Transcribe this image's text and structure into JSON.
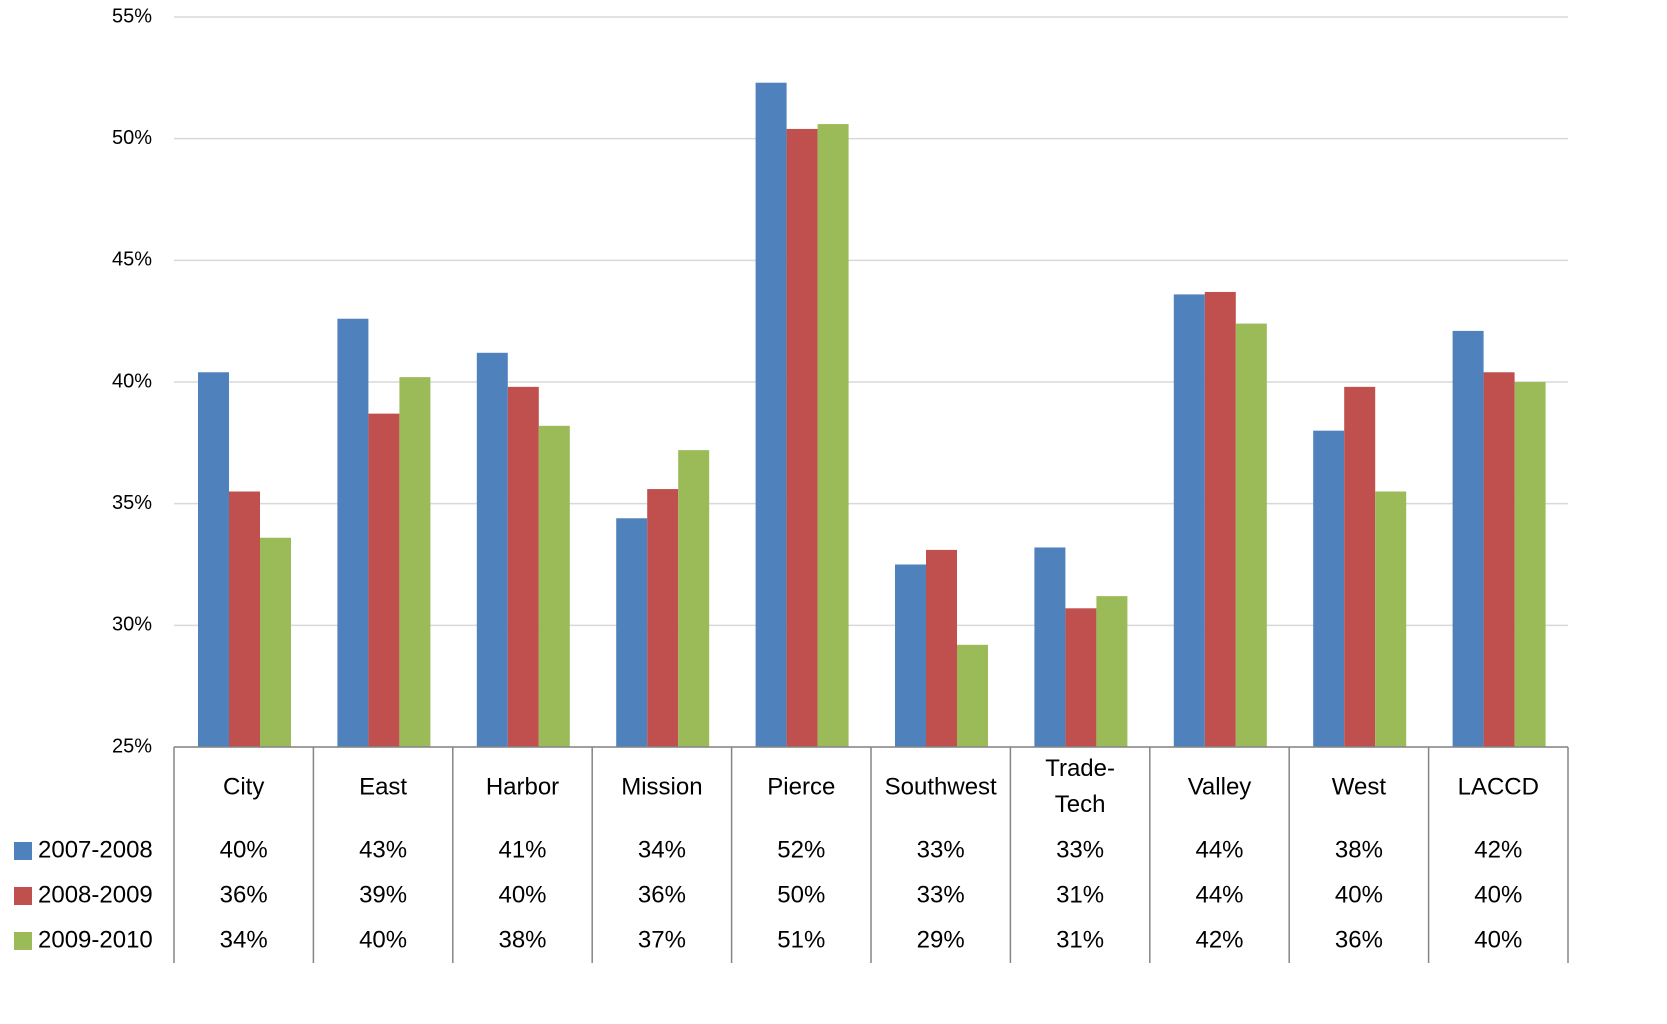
{
  "chart_data": {
    "type": "bar",
    "categories": [
      "City",
      "East",
      "Harbor",
      "Mission",
      "Pierce",
      "Southwest",
      "Trade-Tech",
      "Valley",
      "West",
      "LACCD"
    ],
    "series": [
      {
        "name": "2007-2008",
        "color": "#4f81bd",
        "values": [
          40.4,
          42.6,
          41.2,
          34.4,
          52.3,
          32.5,
          33.2,
          43.6,
          38.0,
          42.1
        ],
        "value_labels": [
          "40%",
          "43%",
          "41%",
          "34%",
          "52%",
          "33%",
          "33%",
          "44%",
          "38%",
          "42%"
        ]
      },
      {
        "name": "2008-2009",
        "color": "#c0504d",
        "values": [
          35.5,
          38.7,
          39.8,
          35.6,
          50.4,
          33.1,
          30.7,
          43.7,
          39.8,
          40.4
        ],
        "value_labels": [
          "36%",
          "39%",
          "40%",
          "36%",
          "50%",
          "33%",
          "31%",
          "44%",
          "40%",
          "40%"
        ]
      },
      {
        "name": "2009-2010",
        "color": "#9bbb59",
        "values": [
          33.6,
          40.2,
          38.2,
          37.2,
          50.6,
          29.2,
          31.2,
          42.4,
          35.5,
          40.0
        ],
        "value_labels": [
          "34%",
          "40%",
          "38%",
          "37%",
          "51%",
          "29%",
          "31%",
          "42%",
          "36%",
          "40%"
        ]
      }
    ],
    "ylim": [
      25,
      55
    ],
    "yticks": [
      {
        "value": 25,
        "label": "25%"
      },
      {
        "value": 30,
        "label": "30%"
      },
      {
        "value": 35,
        "label": "35%"
      },
      {
        "value": 40,
        "label": "40%"
      },
      {
        "value": 45,
        "label": "45%"
      },
      {
        "value": 50,
        "label": "50%"
      },
      {
        "value": 55,
        "label": "55%"
      }
    ],
    "grid": true
  }
}
